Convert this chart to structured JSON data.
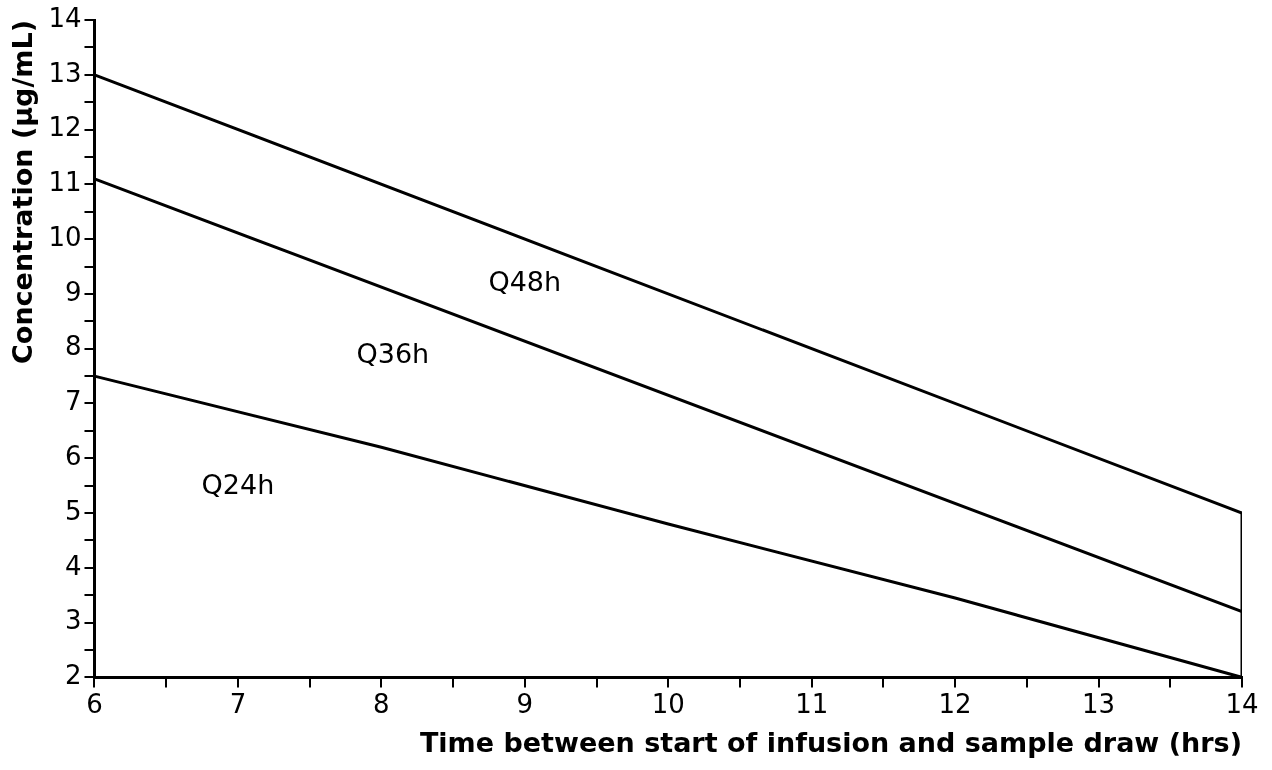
{
  "chart_data": {
    "type": "line",
    "xlabel": "Time between start of infusion and sample draw (hrs)",
    "ylabel": "Concentration (µg/mL)",
    "x": [
      6,
      14
    ],
    "series": [
      {
        "name": "Q48h",
        "color": "#000000",
        "values": [
          13,
          5
        ]
      },
      {
        "name": "Q36h",
        "color": "#000000",
        "values": [
          11.1,
          3.2
        ]
      },
      {
        "name": "Q24h",
        "color": "#000000",
        "x": [
          6,
          8,
          10,
          12,
          14
        ],
        "values": [
          7.5,
          6.2,
          4.8,
          3.45,
          2.0
        ]
      },
      {
        "color": "#000000",
        "x": [
          14,
          14
        ],
        "values": [
          2,
          5
        ]
      }
    ],
    "xlim": [
      6,
      14
    ],
    "xticks": [
      6,
      {
        "value": 6.5,
        "label": null
      },
      7,
      {
        "value": 7.5,
        "label": null
      },
      8,
      {
        "value": 8.5,
        "label": null
      },
      9,
      {
        "value": 9.5,
        "label": null
      },
      10,
      {
        "value": 10.5,
        "label": null
      },
      11,
      {
        "value": 11.5,
        "label": null
      },
      12,
      {
        "value": 12.5,
        "label": null
      },
      13,
      {
        "value": 13.5,
        "label": null
      },
      14
    ],
    "ylim": [
      2,
      14
    ],
    "yticks": [
      2,
      {
        "value": 2.5,
        "label": null
      },
      3,
      {
        "value": 3.5,
        "label": null
      },
      4,
      {
        "value": 4.5,
        "label": null
      },
      5,
      {
        "value": 5.5,
        "label": null
      },
      6,
      {
        "value": 6.5,
        "label": null
      },
      7,
      {
        "value": 7.5,
        "label": null
      },
      8,
      {
        "value": 8.5,
        "label": null
      },
      9,
      {
        "value": 9.5,
        "label": null
      },
      10,
      {
        "value": 10.5,
        "label": null
      },
      11,
      {
        "value": 11.5,
        "label": null
      },
      12,
      {
        "value": 12.5,
        "label": null
      },
      13,
      {
        "value": 13.5,
        "label": null
      },
      14
    ],
    "grid": false,
    "legend": false,
    "marker": "none",
    "line_style": "solid"
  }
}
